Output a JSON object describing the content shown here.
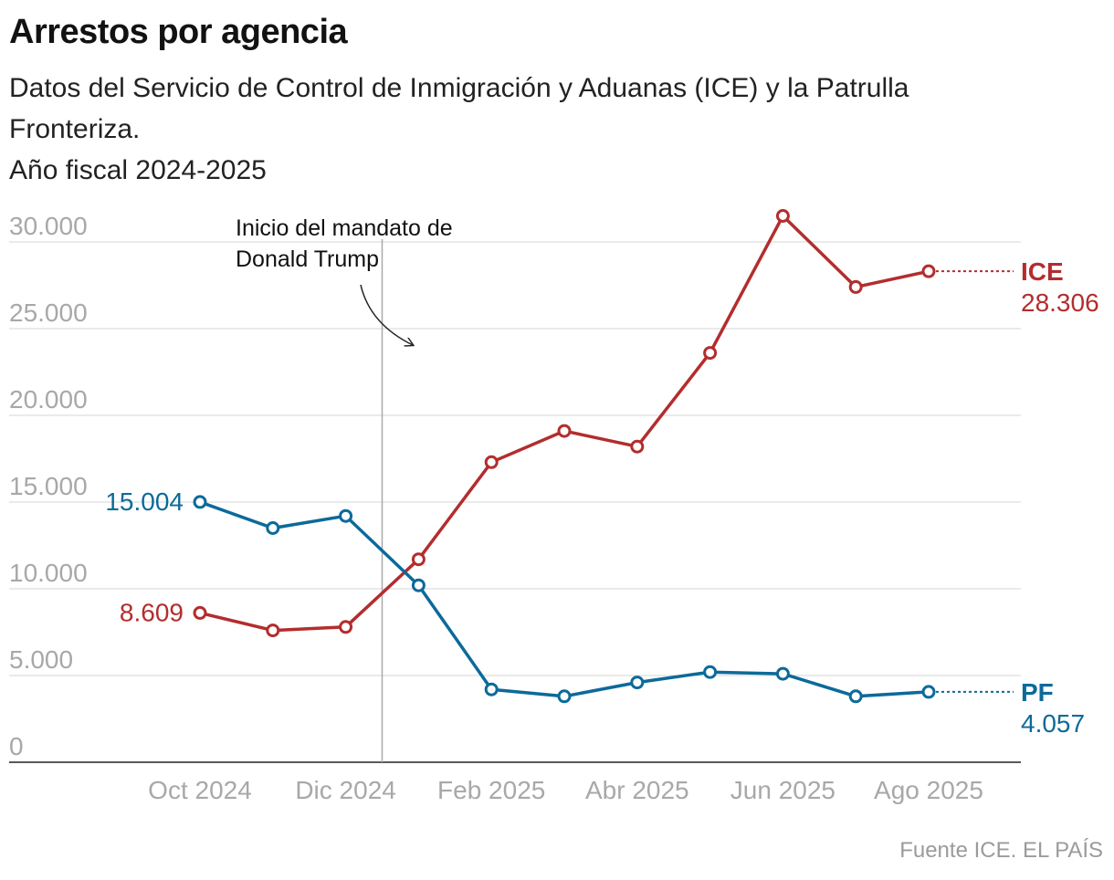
{
  "title": "Arrestos por agencia",
  "subtitle_line1": "Datos del Servicio de Control de Inmigración y Aduanas (ICE) y la Patrulla",
  "subtitle_line2": "Fronteriza.",
  "subtitle_line3": "Año fiscal 2024-2025",
  "source_label": "Fuente ICE",
  "source_org": "EL PAÍS",
  "chart_data": {
    "type": "line",
    "title": "Arrestos por agencia",
    "xlabel": "",
    "ylabel": "",
    "ylim": [
      0,
      30000
    ],
    "yticks": [
      0,
      5000,
      10000,
      15000,
      20000,
      25000,
      30000
    ],
    "ytick_labels": [
      "0",
      "5.000",
      "10.000",
      "15.000",
      "20.000",
      "25.000",
      "30.000"
    ],
    "categories": [
      "Oct 2024",
      "Nov 2024",
      "Dic 2024",
      "Ene 2025",
      "Feb 2025",
      "Mar 2025",
      "Abr 2025",
      "May 2025",
      "Jun 2025",
      "Jul 2025",
      "Ago 2025"
    ],
    "xtick_labels": [
      "Oct 2024",
      "Dic 2024",
      "Feb 2025",
      "Abr 2025",
      "Jun 2025",
      "Ago 2025"
    ],
    "series": [
      {
        "name": "ICE",
        "color": "#b32d2e",
        "values": [
          8609,
          7600,
          7800,
          11700,
          17300,
          19100,
          18200,
          23600,
          31500,
          27400,
          28306
        ],
        "start_label": "8.609",
        "end_label": "28.306"
      },
      {
        "name": "PF",
        "color": "#0c6a9a",
        "values": [
          15004,
          13500,
          14200,
          10200,
          4200,
          3800,
          4600,
          5200,
          5100,
          3800,
          4057
        ],
        "start_label": "15.004",
        "end_label": "4.057"
      }
    ],
    "annotation": {
      "text_line1": "Inicio del mandato de",
      "text_line2": "Donald Trump",
      "x_position": 2.5
    },
    "grid": true,
    "legend": "direct labels at line ends (right)"
  }
}
